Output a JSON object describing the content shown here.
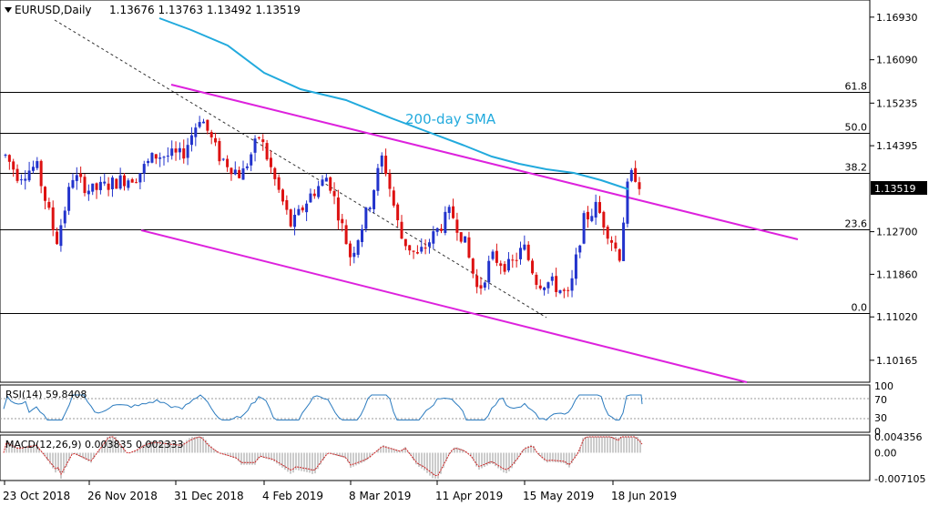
{
  "header": {
    "symbol": "EURUSD,Daily",
    "ohlc": "1.13676 1.13763 1.13492 1.13519"
  },
  "chart_data": {
    "type": "candlestick",
    "y_range": [
      1.0975,
      1.1725
    ],
    "price_ticks": [
      "1.16930",
      "1.16090",
      "1.15235",
      "1.14395",
      "1.13519",
      "1.12700",
      "1.11860",
      "1.11020",
      "1.10165"
    ],
    "current_price": "1.13519",
    "date_labels": [
      "23 Oct 2018",
      "26 Nov 2018",
      "31 Dec 2018",
      "4 Feb 2019",
      "8 Mar 2019",
      "11 Apr 2019",
      "15 May 2019",
      "18 Jun 2019"
    ],
    "fib_levels": [
      {
        "label": "61.8",
        "value": 1.1545
      },
      {
        "label": "50.0",
        "value": 1.1465
      },
      {
        "label": "38.2",
        "value": 1.1385
      },
      {
        "label": "23.6",
        "value": 1.1275
      },
      {
        "label": "0.0",
        "value": 1.111
      }
    ],
    "sma_label": "200-day SMA",
    "colors": {
      "up": "#2233cc",
      "down": "#dd1111",
      "sma": "#22aadd",
      "channel": "#dd22dd",
      "fib": "#000000",
      "trend": "#000000",
      "macd_signal": "#cc2222"
    },
    "indicators": {
      "rsi": {
        "label": "RSI(14) 59.8408",
        "ticks": [
          "100",
          "70",
          "30",
          "0"
        ],
        "last_value": 59.8408
      },
      "macd": {
        "label": "MACD(12,26,9) 0.003835 0.002333",
        "ticks": [
          "0.004356",
          "0.00",
          "-0.007105"
        ],
        "macd": 0.003835,
        "signal": 0.002333
      }
    }
  }
}
